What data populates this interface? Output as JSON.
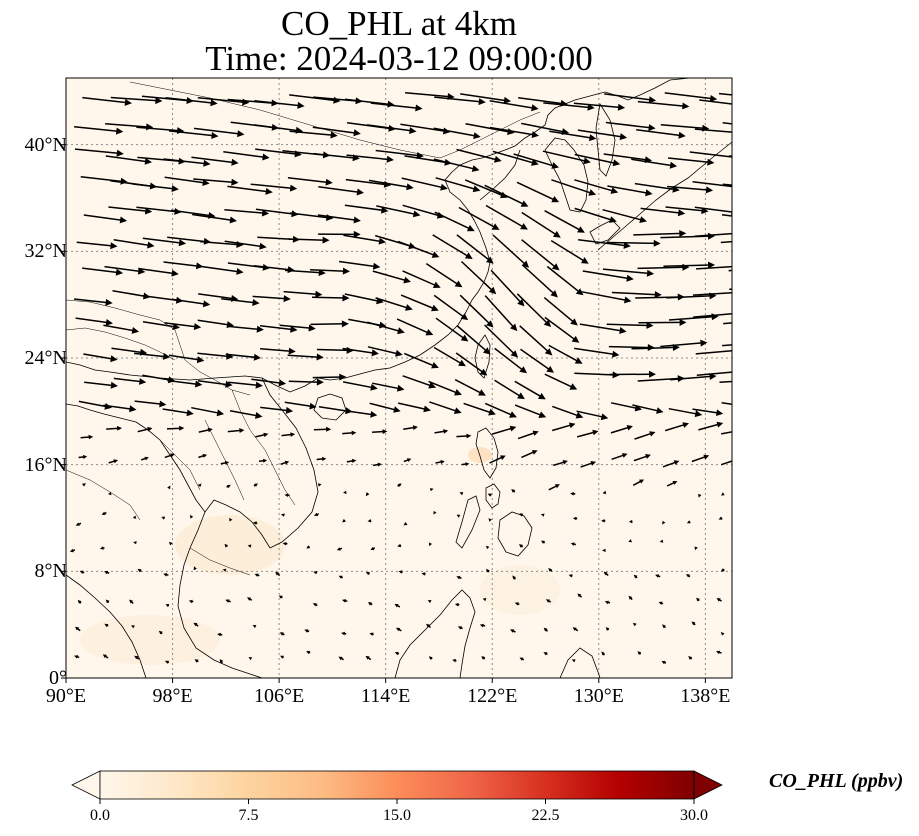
{
  "title": {
    "line1": "CO_PHL at 4km",
    "line2": "Time: 2024-03-12 09:00:00"
  },
  "map": {
    "projection": "PlateCarree",
    "lon_range": [
      90,
      140
    ],
    "lat_range": [
      0,
      45
    ],
    "gridlines": "dotted grey",
    "coastlines": true,
    "borders": true,
    "field_colormap": "OrRd",
    "field_level": "near zero everywhere (pale cream)",
    "wind_vectors": true
  },
  "axes": {
    "y_ticks": [
      {
        "value": 0,
        "label": "0°"
      },
      {
        "value": 8,
        "label": "8°N"
      },
      {
        "value": 16,
        "label": "16°N"
      },
      {
        "value": 24,
        "label": "24°N"
      },
      {
        "value": 32,
        "label": "32°N"
      },
      {
        "value": 40,
        "label": "40°N"
      }
    ],
    "x_ticks": [
      {
        "value": 90,
        "label": "90°E"
      },
      {
        "value": 98,
        "label": "98°E"
      },
      {
        "value": 106,
        "label": "106°E"
      },
      {
        "value": 114,
        "label": "114°E"
      },
      {
        "value": 122,
        "label": "122°E"
      },
      {
        "value": 130,
        "label": "130°E"
      },
      {
        "value": 138,
        "label": "138°E"
      }
    ]
  },
  "colorbar": {
    "label": "CO_PHL (ppbv)",
    "min": 0.0,
    "max": 30.0,
    "extend": "both",
    "ticks": [
      {
        "value": 0.0,
        "label": "0.0"
      },
      {
        "value": 7.5,
        "label": "7.5"
      },
      {
        "value": 15.0,
        "label": "15.0"
      },
      {
        "value": 22.5,
        "label": "22.5"
      },
      {
        "value": 30.0,
        "label": "30.0"
      }
    ],
    "colors": [
      "#fff7ec",
      "#fee8c8",
      "#fdd49e",
      "#fdbb84",
      "#fc8d59",
      "#ef6548",
      "#d7301f",
      "#b30000",
      "#7f0000"
    ]
  },
  "colors": {
    "background": "#fff7ec",
    "coastline": "#000000",
    "gridline": "#808080",
    "arrow": "#000000"
  }
}
